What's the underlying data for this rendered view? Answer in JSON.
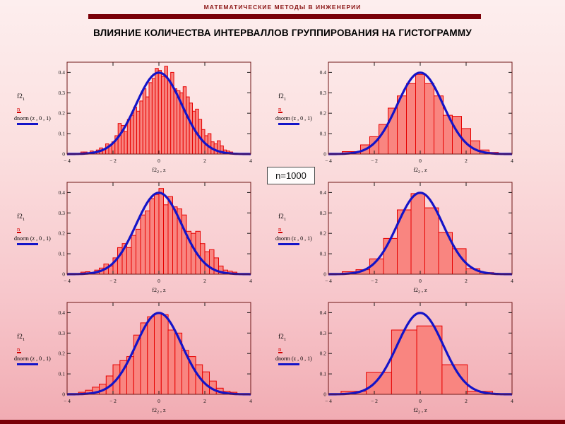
{
  "page": {
    "header": "МАТЕМАТИЧЕСКИЕ МЕТОДЫ В ИНЖЕНЕРИИ",
    "title": "ВЛИЯНИЕ КОЛИЧЕСТВА ИНТЕРВАЛЛОВ ГРУППИРОВАНИЯ НА ГИСТОГРАММУ",
    "sample_size_label": "n=1000"
  },
  "colors": {
    "accent_bar": "#7a0008",
    "header_text": "#8b1515",
    "bar_fill": "#f98580",
    "bar_stroke": "#e60000",
    "curve": "#1414c8",
    "plot_border": "#6e1616",
    "tick": "#1a1a1a"
  },
  "legend": {
    "series1_label": "f2",
    "series1_sub": "1",
    "series1_symbol": "n",
    "series1_symbol_meaning": "red-histogram-trace-glyph",
    "series2_label": "dnorm (z , 0 , 1)",
    "series2_symbol": "blue-line"
  },
  "chart_data": {
    "type": "bar",
    "subtype": "histogram-with-normal-curve",
    "curve_formula": "dnorm(z,0,1) standard normal density",
    "xlim": [
      -4,
      4
    ],
    "ylim": [
      0,
      0.45
    ],
    "grid": false,
    "xtick_values": [
      -4,
      -2,
      0,
      2,
      4
    ],
    "xtick_labels": [
      "− 4",
      "− 2",
      "0",
      "2",
      "4"
    ],
    "ytick_values": [
      0,
      0.1,
      0.2,
      0.3,
      0.4
    ],
    "ytick_labels": [
      "0",
      "0.1",
      "0.2",
      "0.3",
      "0.4"
    ],
    "xlabel_parts": {
      "base": "f2",
      "sub": "2",
      "rest": " , z"
    },
    "ylabel": "f2_1 / n (histogram) and dnorm(z,0,1)",
    "charts": [
      {
        "position": "top-left",
        "intervals": 50,
        "bins": {
          "start": -3.4,
          "width": 0.135,
          "heights": [
            0.01,
            0.01,
            0.005,
            0.015,
            0.01,
            0.02,
            0.03,
            0.025,
            0.05,
            0.04,
            0.06,
            0.09,
            0.15,
            0.14,
            0.11,
            0.17,
            0.19,
            0.23,
            0.21,
            0.26,
            0.32,
            0.28,
            0.35,
            0.37,
            0.42,
            0.41,
            0.38,
            0.43,
            0.36,
            0.4,
            0.32,
            0.31,
            0.3,
            0.33,
            0.28,
            0.25,
            0.21,
            0.22,
            0.17,
            0.12,
            0.09,
            0.1,
            0.06,
            0.05,
            0.065,
            0.04,
            0.02,
            0.015,
            0.01,
            0.005
          ]
        }
      },
      {
        "position": "top-right",
        "intervals": 17,
        "bins": {
          "start": -3.4,
          "width": 0.4,
          "heights": [
            0.012,
            0.012,
            0.045,
            0.085,
            0.145,
            0.225,
            0.285,
            0.345,
            0.39,
            0.345,
            0.285,
            0.19,
            0.185,
            0.125,
            0.065,
            0.02,
            0.008
          ]
        }
      },
      {
        "position": "middle-left",
        "intervals": 34,
        "bins": {
          "start": -3.4,
          "width": 0.2,
          "heights": [
            0.01,
            0.012,
            0.005,
            0.02,
            0.03,
            0.05,
            0.04,
            0.08,
            0.13,
            0.15,
            0.13,
            0.19,
            0.22,
            0.29,
            0.31,
            0.37,
            0.39,
            0.42,
            0.34,
            0.38,
            0.33,
            0.32,
            0.29,
            0.21,
            0.2,
            0.21,
            0.15,
            0.11,
            0.12,
            0.08,
            0.04,
            0.02,
            0.015,
            0.01
          ]
        }
      },
      {
        "position": "middle-right",
        "intervals": 11,
        "bins": {
          "start": -3.4,
          "width": 0.6,
          "heights": [
            0.012,
            0.022,
            0.075,
            0.175,
            0.315,
            0.395,
            0.325,
            0.205,
            0.125,
            0.027,
            0.008
          ]
        }
      },
      {
        "position": "bottom-left",
        "intervals": 23,
        "bins": {
          "start": -3.5,
          "width": 0.3,
          "heights": [
            0.01,
            0.02,
            0.035,
            0.05,
            0.09,
            0.145,
            0.165,
            0.185,
            0.29,
            0.35,
            0.38,
            0.395,
            0.39,
            0.315,
            0.3,
            0.215,
            0.185,
            0.145,
            0.11,
            0.065,
            0.03,
            0.015,
            0.01
          ]
        }
      },
      {
        "position": "bottom-right",
        "intervals": 6,
        "bins": {
          "start": -3.45,
          "width": 1.1,
          "heights": [
            0.015,
            0.107,
            0.315,
            0.335,
            0.145,
            0.015
          ]
        }
      }
    ]
  }
}
